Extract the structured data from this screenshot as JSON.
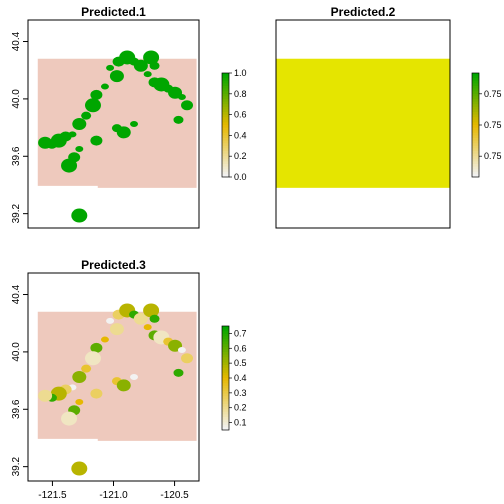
{
  "chart_data": [
    {
      "type": "heatmap",
      "title": "Predicted.1",
      "xlabel": "",
      "ylabel": "",
      "xlim": [
        -121.7,
        -120.3
      ],
      "ylim": [
        39.1,
        40.55
      ],
      "xticks": [],
      "yticks": [
        "39.2",
        "39.6",
        "40.0",
        "40.4"
      ],
      "extent": {
        "xmin": -121.62,
        "xmax": -120.32,
        "ymin": 39.38,
        "ymax": 40.28
      },
      "legend": {
        "position": "right",
        "ticks": [
          "0.0",
          "0.2",
          "0.4",
          "0.6",
          "0.8",
          "1.0"
        ],
        "min": 0,
        "max": 1
      },
      "base_value": 0.0,
      "colors": {
        "low": "#f2f2f2",
        "mid": "#e6b800",
        "high": "#00a600",
        "background": "#eec9bd"
      }
    },
    {
      "type": "heatmap",
      "title": "Predicted.2",
      "xlabel": "",
      "ylabel": "",
      "xlim": [
        -121.7,
        -120.3
      ],
      "ylim": [
        39.1,
        40.55
      ],
      "xticks": [],
      "yticks": [],
      "extent": {
        "xmin": -121.7,
        "xmax": -120.3,
        "ymin": 39.38,
        "ymax": 40.28
      },
      "legend": {
        "position": "right",
        "ticks": [
          "0.75",
          "0.75",
          "0.75"
        ]
      },
      "base_value": 0.75,
      "colors": {
        "fill": "#e5e500"
      }
    },
    {
      "type": "heatmap",
      "title": "Predicted.3",
      "xlabel": "",
      "ylabel": "",
      "xlim": [
        -121.7,
        -120.3
      ],
      "ylim": [
        39.1,
        40.55
      ],
      "xticks": [
        "-121.5",
        "-121.0",
        "-120.5"
      ],
      "yticks": [
        "39.2",
        "39.6",
        "40.0",
        "40.4"
      ],
      "extent": {
        "xmin": -121.62,
        "xmax": -120.32,
        "ymin": 39.38,
        "ymax": 40.28
      },
      "legend": {
        "position": "right",
        "ticks": [
          "0.1",
          "0.2",
          "0.3",
          "0.4",
          "0.5",
          "0.6",
          "0.7"
        ],
        "min": 0.05,
        "max": 0.75
      },
      "base_value": 0.05,
      "colors": {
        "low": "#f2f2f2",
        "mid": "#e6b800",
        "high": "#00a600",
        "background": "#eec9bd"
      }
    }
  ]
}
